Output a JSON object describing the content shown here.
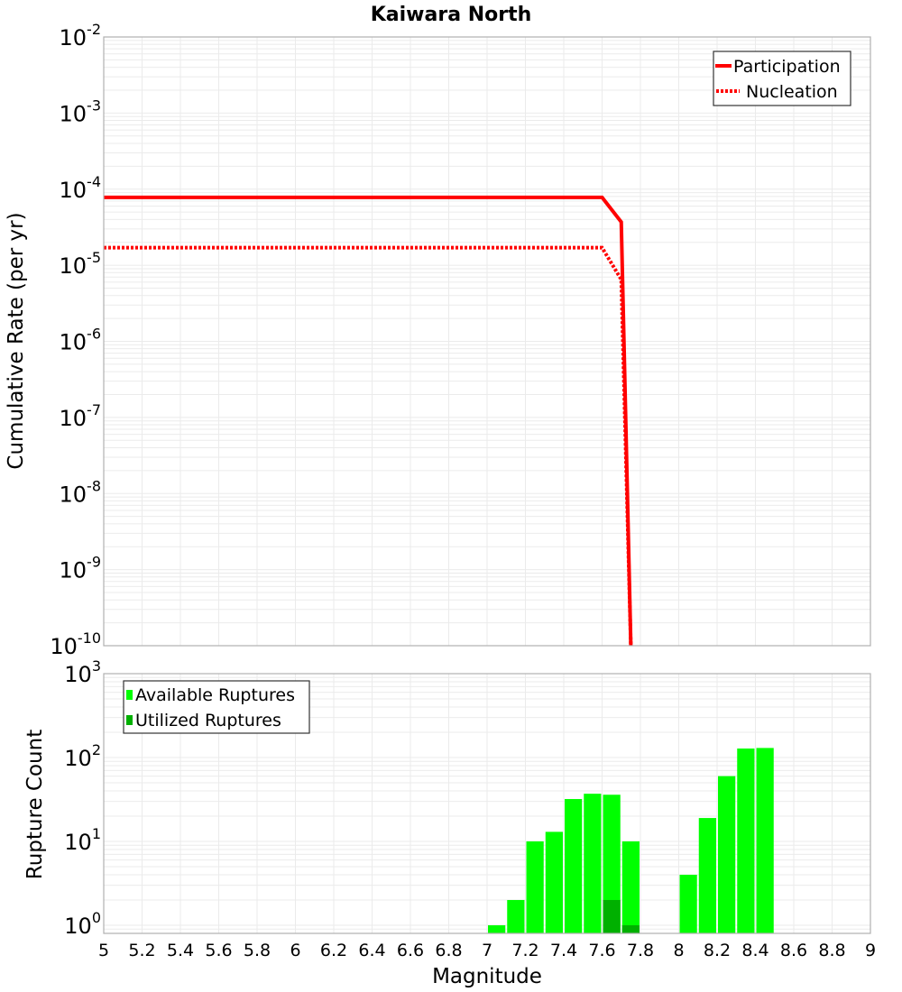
{
  "title": "Kaiwara North",
  "colors": {
    "line": "#ff0000",
    "available_bar": "#00ff00",
    "utilized_bar": "#00b000",
    "grid": "#ebebeb",
    "axis": "#b0b0b0"
  },
  "top_plot": {
    "ylabel": "Cumulative Rate (per yr)",
    "yticks": [
      {
        "base": "10",
        "exp": "-2"
      },
      {
        "base": "10",
        "exp": "-3"
      },
      {
        "base": "10",
        "exp": "-4"
      },
      {
        "base": "10",
        "exp": "-5"
      },
      {
        "base": "10",
        "exp": "-6"
      },
      {
        "base": "10",
        "exp": "-7"
      },
      {
        "base": "10",
        "exp": "-8"
      },
      {
        "base": "10",
        "exp": "-9"
      },
      {
        "base": "10",
        "exp": "-10"
      }
    ],
    "legend": [
      {
        "label": "Participation",
        "style": "solid"
      },
      {
        "label": "Nucleation",
        "style": "dotted"
      }
    ]
  },
  "bottom_plot": {
    "ylabel": "Rupture Count",
    "xlabel": "Magnitude",
    "yticks": [
      {
        "base": "10",
        "exp": "3"
      },
      {
        "base": "10",
        "exp": "2"
      },
      {
        "base": "10",
        "exp": "1"
      },
      {
        "base": "10",
        "exp": "0"
      }
    ],
    "xticks": [
      "5",
      "5.2",
      "5.4",
      "5.6",
      "5.8",
      "6",
      "6.2",
      "6.4",
      "6.6",
      "6.8",
      "7",
      "7.2",
      "7.4",
      "7.6",
      "7.8",
      "8",
      "8.2",
      "8.4",
      "8.6",
      "8.8",
      "9"
    ],
    "legend": [
      {
        "label": "Available Ruptures"
      },
      {
        "label": "Utilized Ruptures"
      }
    ]
  },
  "chart_data": [
    {
      "type": "line",
      "title": "Kaiwara North",
      "xlabel": "Magnitude",
      "ylabel": "Cumulative Rate (per yr)",
      "xlim": [
        5,
        9
      ],
      "ylim": [
        1e-10,
        0.01
      ],
      "yscale": "log",
      "grid": true,
      "legend_position": "upper right",
      "series": [
        {
          "name": "Participation",
          "style": "solid",
          "color": "#ff0000",
          "x": [
            5.0,
            7.6,
            7.7,
            7.75
          ],
          "y": [
            7.8e-05,
            7.8e-05,
            3.7e-05,
            1e-10
          ]
        },
        {
          "name": "Nucleation",
          "style": "dotted",
          "color": "#ff0000",
          "x": [
            5.0,
            7.6,
            7.7,
            7.75
          ],
          "y": [
            1.7e-05,
            1.7e-05,
            6.5e-06,
            1e-10
          ]
        }
      ]
    },
    {
      "type": "bar",
      "xlabel": "Magnitude",
      "ylabel": "Rupture Count",
      "xlim": [
        5,
        9
      ],
      "ylim": [
        0.8,
        1000
      ],
      "yscale": "log",
      "grid": true,
      "legend_position": "upper left",
      "bin_width": 0.1,
      "categories": [
        7.05,
        7.15,
        7.25,
        7.35,
        7.45,
        7.55,
        7.65,
        7.75,
        8.05,
        8.15,
        8.25,
        8.35,
        8.45
      ],
      "series": [
        {
          "name": "Available Ruptures",
          "color": "#00ff00",
          "values": [
            1,
            2,
            10,
            13,
            32,
            37,
            36,
            10,
            4,
            19,
            60,
            128,
            130
          ]
        },
        {
          "name": "Utilized Ruptures",
          "color": "#00b000",
          "values": [
            0,
            0,
            0,
            0,
            0,
            0,
            2,
            1,
            0,
            0,
            0,
            0,
            0
          ]
        }
      ]
    }
  ]
}
